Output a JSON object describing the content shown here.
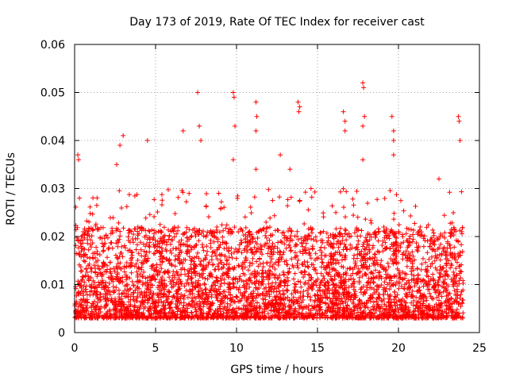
{
  "chart_data": {
    "type": "scatter",
    "title": "Day 173 of 2019, Rate Of TEC Index for receiver cast",
    "xlabel": "GPS time / hours",
    "ylabel": "ROTI / TECUs",
    "xlim": [
      0,
      25
    ],
    "ylim": [
      0,
      0.06
    ],
    "xticks": [
      0,
      5,
      10,
      15,
      20,
      25
    ],
    "xtick_labels": [
      "0",
      "5",
      "10",
      "15",
      "20",
      "25"
    ],
    "yticks": [
      0,
      0.01,
      0.02,
      0.03,
      0.04,
      0.05,
      0.06
    ],
    "ytick_labels": [
      "0",
      "0.01",
      "0.02",
      "0.03",
      "0.04",
      "0.05",
      "0.06"
    ],
    "grid": true,
    "marker": "+",
    "color": "#ff0000",
    "series": [
      {
        "name": "ROTI",
        "x_range": [
          0,
          24
        ],
        "baseline_range": [
          0.003,
          0.022
        ],
        "peak_points": [
          {
            "x": 0.2,
            "y": 0.037
          },
          {
            "x": 0.25,
            "y": 0.036
          },
          {
            "x": 0.3,
            "y": 0.028
          },
          {
            "x": 2.8,
            "y": 0.039
          },
          {
            "x": 3.0,
            "y": 0.041
          },
          {
            "x": 4.5,
            "y": 0.04
          },
          {
            "x": 6.7,
            "y": 0.042
          },
          {
            "x": 7.6,
            "y": 0.05
          },
          {
            "x": 7.7,
            "y": 0.043
          },
          {
            "x": 7.8,
            "y": 0.04
          },
          {
            "x": 9.8,
            "y": 0.05
          },
          {
            "x": 9.85,
            "y": 0.049
          },
          {
            "x": 9.9,
            "y": 0.043
          },
          {
            "x": 11.2,
            "y": 0.048
          },
          {
            "x": 11.25,
            "y": 0.045
          },
          {
            "x": 11.2,
            "y": 0.042
          },
          {
            "x": 12.7,
            "y": 0.037
          },
          {
            "x": 13.8,
            "y": 0.048
          },
          {
            "x": 13.9,
            "y": 0.047
          },
          {
            "x": 13.85,
            "y": 0.046
          },
          {
            "x": 16.6,
            "y": 0.046
          },
          {
            "x": 16.7,
            "y": 0.044
          },
          {
            "x": 16.7,
            "y": 0.042
          },
          {
            "x": 17.8,
            "y": 0.052
          },
          {
            "x": 17.85,
            "y": 0.051
          },
          {
            "x": 17.9,
            "y": 0.045
          },
          {
            "x": 17.8,
            "y": 0.043
          },
          {
            "x": 19.6,
            "y": 0.045
          },
          {
            "x": 19.7,
            "y": 0.042
          },
          {
            "x": 19.7,
            "y": 0.04
          },
          {
            "x": 23.7,
            "y": 0.045
          },
          {
            "x": 23.75,
            "y": 0.044
          },
          {
            "x": 23.8,
            "y": 0.04
          },
          {
            "x": 9.8,
            "y": 0.036
          },
          {
            "x": 11.2,
            "y": 0.034
          },
          {
            "x": 17.8,
            "y": 0.036
          },
          {
            "x": 19.7,
            "y": 0.037
          },
          {
            "x": 22.5,
            "y": 0.032
          },
          {
            "x": 2.6,
            "y": 0.035
          },
          {
            "x": 13.3,
            "y": 0.034
          },
          {
            "x": 14.6,
            "y": 0.03
          },
          {
            "x": 8.9,
            "y": 0.029
          }
        ]
      }
    ]
  }
}
